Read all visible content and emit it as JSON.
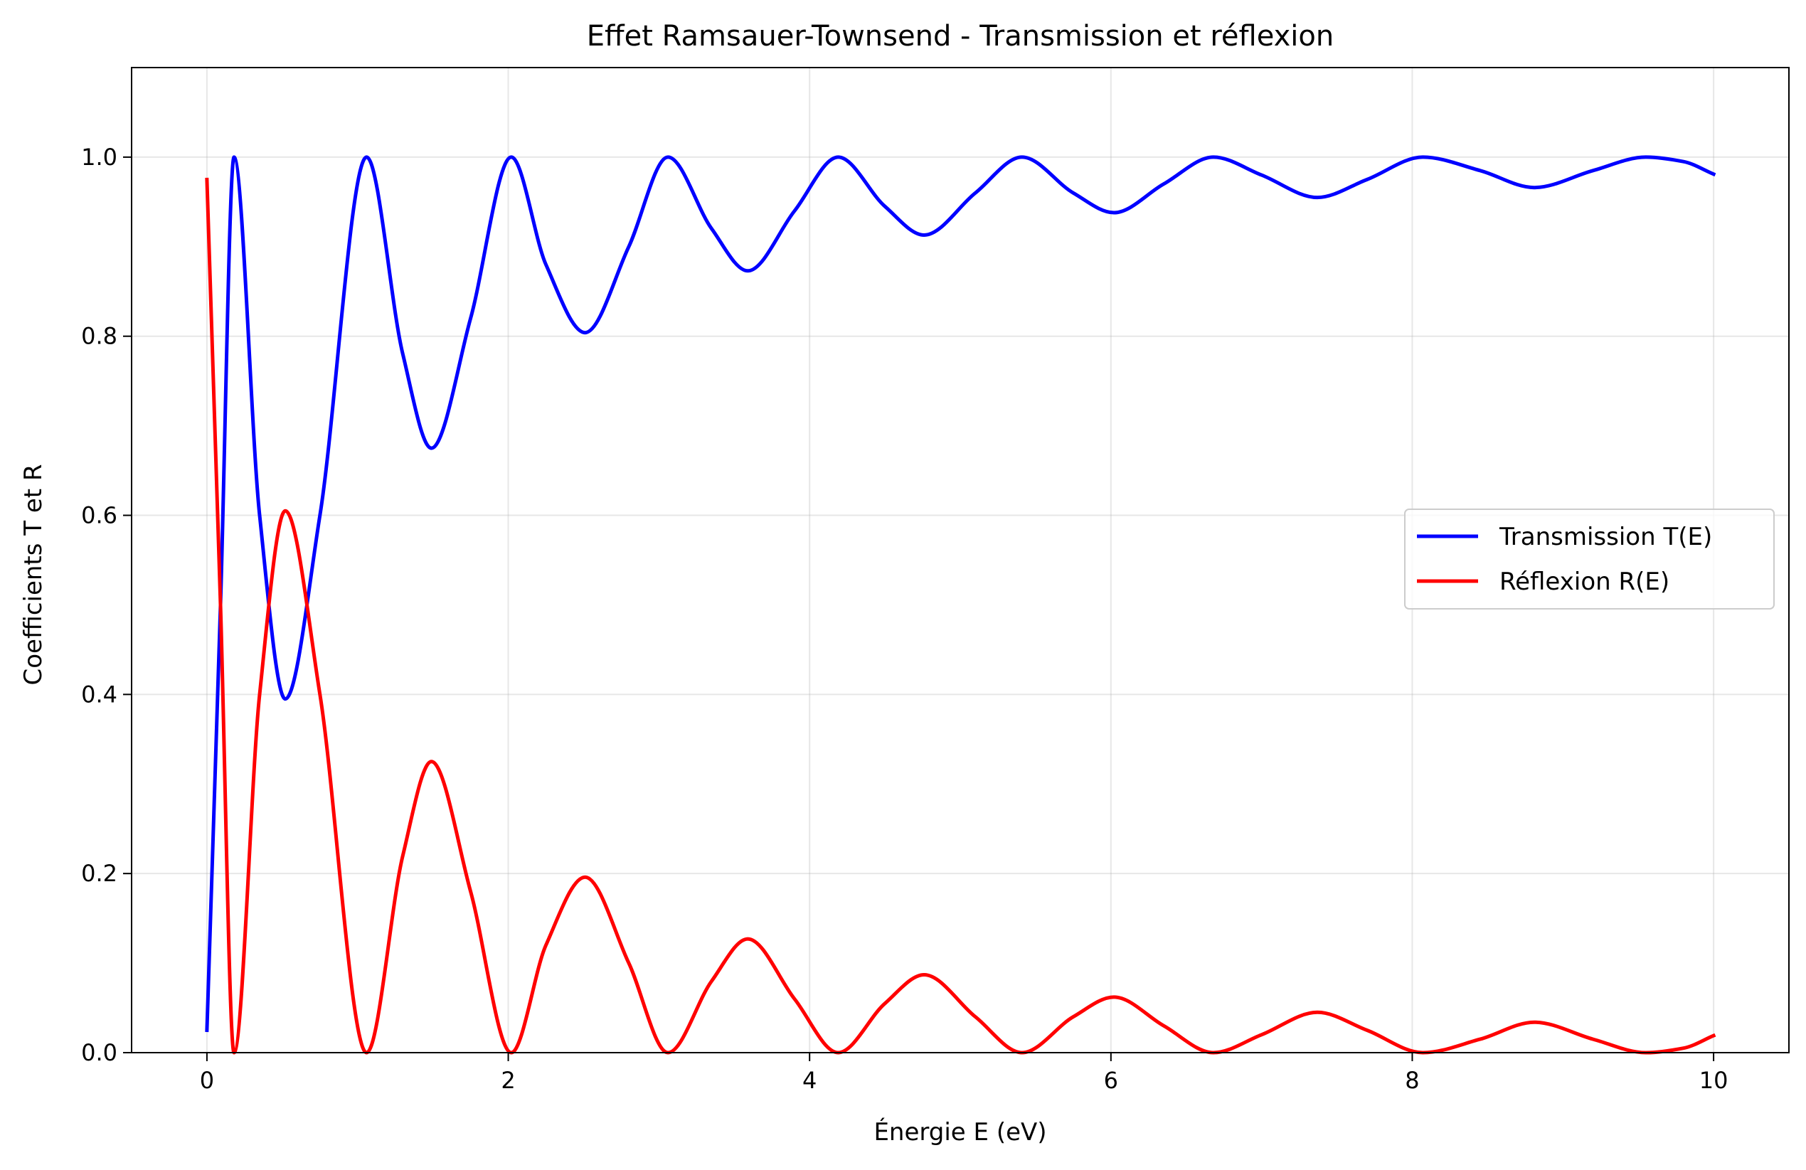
{
  "chart_data": {
    "type": "line",
    "title": "Effet Ramsauer-Townsend - Transmission et réflexion",
    "xlabel": "Énergie E (eV)",
    "ylabel": "Coefficients T et R",
    "xlim": [
      -0.5,
      10.5
    ],
    "ylim": [
      0.0,
      1.1
    ],
    "xticks": [
      0,
      2,
      4,
      6,
      8,
      10
    ],
    "xtick_labels": [
      "0",
      "2",
      "4",
      "6",
      "8",
      "10"
    ],
    "yticks": [
      0.0,
      0.2,
      0.4,
      0.6,
      0.8,
      1.0
    ],
    "ytick_labels": [
      "0.0",
      "0.2",
      "0.4",
      "0.6",
      "0.8",
      "1.0"
    ],
    "grid": true,
    "legend_position": "center-right",
    "series": [
      {
        "name": "Transmission T(E)",
        "color": "#0000ff",
        "x": [
          0.0,
          0.09,
          0.18,
          0.35,
          0.52,
          0.75,
          1.06,
          1.3,
          1.49,
          1.75,
          2.02,
          2.25,
          2.51,
          2.8,
          3.06,
          3.35,
          3.59,
          3.9,
          4.19,
          4.5,
          4.76,
          5.1,
          5.41,
          5.75,
          6.02,
          6.35,
          6.68,
          7.0,
          7.37,
          7.7,
          8.07,
          8.45,
          8.81,
          9.2,
          9.55,
          9.8,
          10.0
        ],
        "y": [
          0.025,
          0.5,
          1.0,
          0.6,
          0.395,
          0.6,
          1.0,
          0.78,
          0.675,
          0.82,
          1.0,
          0.88,
          0.804,
          0.9,
          1.0,
          0.92,
          0.873,
          0.94,
          1.0,
          0.945,
          0.913,
          0.96,
          1.0,
          0.96,
          0.938,
          0.97,
          1.0,
          0.98,
          0.955,
          0.975,
          1.0,
          0.985,
          0.966,
          0.985,
          1.0,
          0.995,
          0.981
        ]
      },
      {
        "name": "Réflexion R(E)",
        "color": "#ff0000",
        "x": [
          0.0,
          0.09,
          0.18,
          0.35,
          0.52,
          0.75,
          1.06,
          1.3,
          1.49,
          1.75,
          2.02,
          2.25,
          2.51,
          2.8,
          3.06,
          3.35,
          3.59,
          3.9,
          4.19,
          4.5,
          4.76,
          5.1,
          5.41,
          5.75,
          6.02,
          6.35,
          6.68,
          7.0,
          7.37,
          7.7,
          8.07,
          8.45,
          8.81,
          9.2,
          9.55,
          9.8,
          10.0
        ],
        "y": [
          0.975,
          0.5,
          0.0,
          0.4,
          0.605,
          0.4,
          0.0,
          0.22,
          0.325,
          0.18,
          0.0,
          0.12,
          0.196,
          0.1,
          0.0,
          0.08,
          0.127,
          0.06,
          0.0,
          0.055,
          0.087,
          0.04,
          0.0,
          0.04,
          0.062,
          0.03,
          0.0,
          0.02,
          0.045,
          0.025,
          0.0,
          0.015,
          0.034,
          0.015,
          0.0,
          0.005,
          0.019
        ]
      }
    ]
  }
}
